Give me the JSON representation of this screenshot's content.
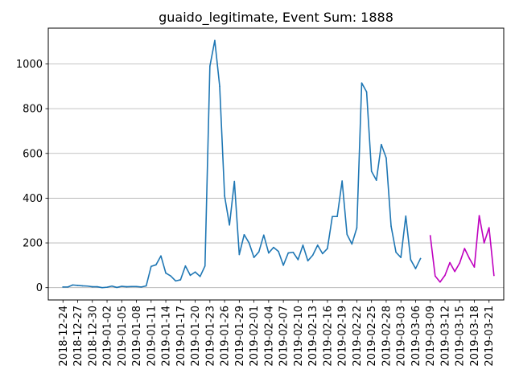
{
  "chart_data": {
    "type": "line",
    "title": "guaido_legitimate, Event Sum: 1888",
    "xlabel": "",
    "ylabel": "",
    "x_ticks": [
      "2018-12-24",
      "2018-12-27",
      "2018-12-30",
      "2019-01-02",
      "2019-01-05",
      "2019-01-08",
      "2019-01-11",
      "2019-01-14",
      "2019-01-17",
      "2019-01-20",
      "2019-01-23",
      "2019-01-26",
      "2019-01-29",
      "2019-02-01",
      "2019-02-04",
      "2019-02-07",
      "2019-02-10",
      "2019-02-13",
      "2019-02-16",
      "2019-02-19",
      "2019-02-22",
      "2019-02-25",
      "2019-02-28",
      "2019-03-03",
      "2019-03-06",
      "2019-03-09",
      "2019-03-12",
      "2019-03-15",
      "2019-03-18",
      "2019-03-21"
    ],
    "y_ticks": [
      0,
      200,
      400,
      600,
      800,
      1000
    ],
    "y_tick_labels": [
      "0",
      "200",
      "400",
      "600",
      "800",
      "1000"
    ],
    "xlim": [
      "2018-12-21",
      "2019-03-24"
    ],
    "ylim": [
      -55,
      1160
    ],
    "grid": "horizontal",
    "series": [
      {
        "color": "#1f77b4",
        "points": [
          [
            "2018-12-24",
            3
          ],
          [
            "2018-12-25",
            3
          ],
          [
            "2018-12-26",
            12
          ],
          [
            "2018-12-27",
            10
          ],
          [
            "2018-12-28",
            8
          ],
          [
            "2018-12-29",
            7
          ],
          [
            "2018-12-30",
            4
          ],
          [
            "2018-12-31",
            4
          ],
          [
            "2019-01-01",
            0
          ],
          [
            "2019-01-02",
            2
          ],
          [
            "2019-01-03",
            7
          ],
          [
            "2019-01-04",
            1
          ],
          [
            "2019-01-05",
            6
          ],
          [
            "2019-01-06",
            4
          ],
          [
            "2019-01-07",
            5
          ],
          [
            "2019-01-08",
            5
          ],
          [
            "2019-01-09",
            3
          ],
          [
            "2019-01-10",
            8
          ],
          [
            "2019-01-11",
            95
          ],
          [
            "2019-01-12",
            102
          ],
          [
            "2019-01-13",
            142
          ],
          [
            "2019-01-14",
            65
          ],
          [
            "2019-01-15",
            52
          ],
          [
            "2019-01-16",
            30
          ],
          [
            "2019-01-17",
            35
          ],
          [
            "2019-01-18",
            97
          ],
          [
            "2019-01-19",
            55
          ],
          [
            "2019-01-20",
            70
          ],
          [
            "2019-01-21",
            50
          ],
          [
            "2019-01-22",
            97
          ],
          [
            "2019-01-23",
            990
          ],
          [
            "2019-01-24",
            1105
          ],
          [
            "2019-01-25",
            900
          ],
          [
            "2019-01-26",
            410
          ],
          [
            "2019-01-27",
            280
          ],
          [
            "2019-01-28",
            475
          ],
          [
            "2019-01-29",
            148
          ],
          [
            "2019-01-30",
            237
          ],
          [
            "2019-01-31",
            200
          ],
          [
            "2019-02-01",
            135
          ],
          [
            "2019-02-02",
            160
          ],
          [
            "2019-02-03",
            235
          ],
          [
            "2019-02-04",
            155
          ],
          [
            "2019-02-05",
            180
          ],
          [
            "2019-02-06",
            162
          ],
          [
            "2019-02-07",
            100
          ],
          [
            "2019-02-08",
            155
          ],
          [
            "2019-02-09",
            158
          ],
          [
            "2019-02-10",
            125
          ],
          [
            "2019-02-11",
            190
          ],
          [
            "2019-02-12",
            120
          ],
          [
            "2019-02-13",
            145
          ],
          [
            "2019-02-14",
            190
          ],
          [
            "2019-02-15",
            152
          ],
          [
            "2019-02-16",
            175
          ],
          [
            "2019-02-17",
            318
          ],
          [
            "2019-02-18",
            318
          ],
          [
            "2019-02-19",
            477
          ],
          [
            "2019-02-20",
            238
          ],
          [
            "2019-02-21",
            195
          ],
          [
            "2019-02-22",
            267
          ],
          [
            "2019-02-23",
            915
          ],
          [
            "2019-02-24",
            875
          ],
          [
            "2019-02-25",
            520
          ],
          [
            "2019-02-26",
            480
          ],
          [
            "2019-02-27",
            640
          ],
          [
            "2019-02-28",
            580
          ],
          [
            "2019-03-01",
            275
          ],
          [
            "2019-03-02",
            158
          ],
          [
            "2019-03-03",
            135
          ],
          [
            "2019-03-04",
            320
          ],
          [
            "2019-03-05",
            125
          ],
          [
            "2019-03-06",
            85
          ],
          [
            "2019-03-07",
            130
          ]
        ]
      },
      {
        "color": "#bf00bf",
        "points": [
          [
            "2019-03-09",
            232
          ],
          [
            "2019-03-10",
            52
          ],
          [
            "2019-03-11",
            25
          ],
          [
            "2019-03-12",
            55
          ],
          [
            "2019-03-13",
            112
          ],
          [
            "2019-03-14",
            72
          ],
          [
            "2019-03-15",
            110
          ],
          [
            "2019-03-16",
            175
          ],
          [
            "2019-03-17",
            130
          ],
          [
            "2019-03-18",
            92
          ],
          [
            "2019-03-19",
            322
          ],
          [
            "2019-03-20",
            200
          ],
          [
            "2019-03-21",
            268
          ],
          [
            "2019-03-22",
            55
          ]
        ]
      }
    ]
  }
}
